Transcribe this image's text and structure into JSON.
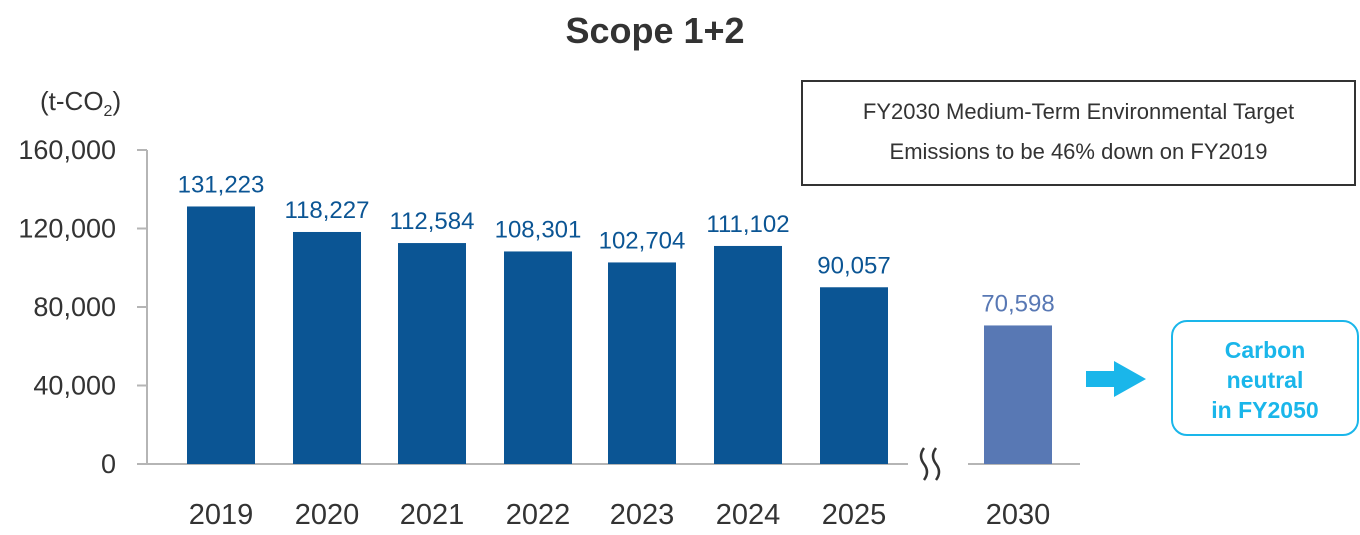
{
  "chart_data": {
    "type": "bar",
    "title": "Scope 1+2",
    "unit_label": "(t-CO",
    "unit_sub": "2",
    "unit_close": ")",
    "categories": [
      "2019",
      "2020",
      "2021",
      "2022",
      "2023",
      "2024",
      "2025",
      "2030"
    ],
    "values": [
      131223,
      118227,
      112584,
      108301,
      102704,
      111102,
      90057,
      70598
    ],
    "value_labels": [
      "131,223",
      "118,227",
      "112,584",
      "108,301",
      "102,704",
      "111,102",
      "90,057",
      "70,598"
    ],
    "yticks": [
      "0",
      "40,000",
      "80,000",
      "120,000",
      "160,000"
    ],
    "ytick_values": [
      0,
      40000,
      80000,
      120000,
      160000
    ],
    "ylim": [
      0,
      160000
    ],
    "grid": false,
    "axis_break_before": "2030",
    "colors": {
      "actual": "#0b5594",
      "target": "#5878b4",
      "actual_label": "#0b5594",
      "target_label": "#5878b4",
      "accent": "#1ab6ea"
    }
  },
  "target_box": {
    "line1": "FY2030 Medium-Term Environmental Target",
    "line2": "Emissions to be 46% down on FY2019"
  },
  "carbon_neutral": {
    "line1": "Carbon",
    "line2": "neutral",
    "line3": "in FY2050"
  }
}
